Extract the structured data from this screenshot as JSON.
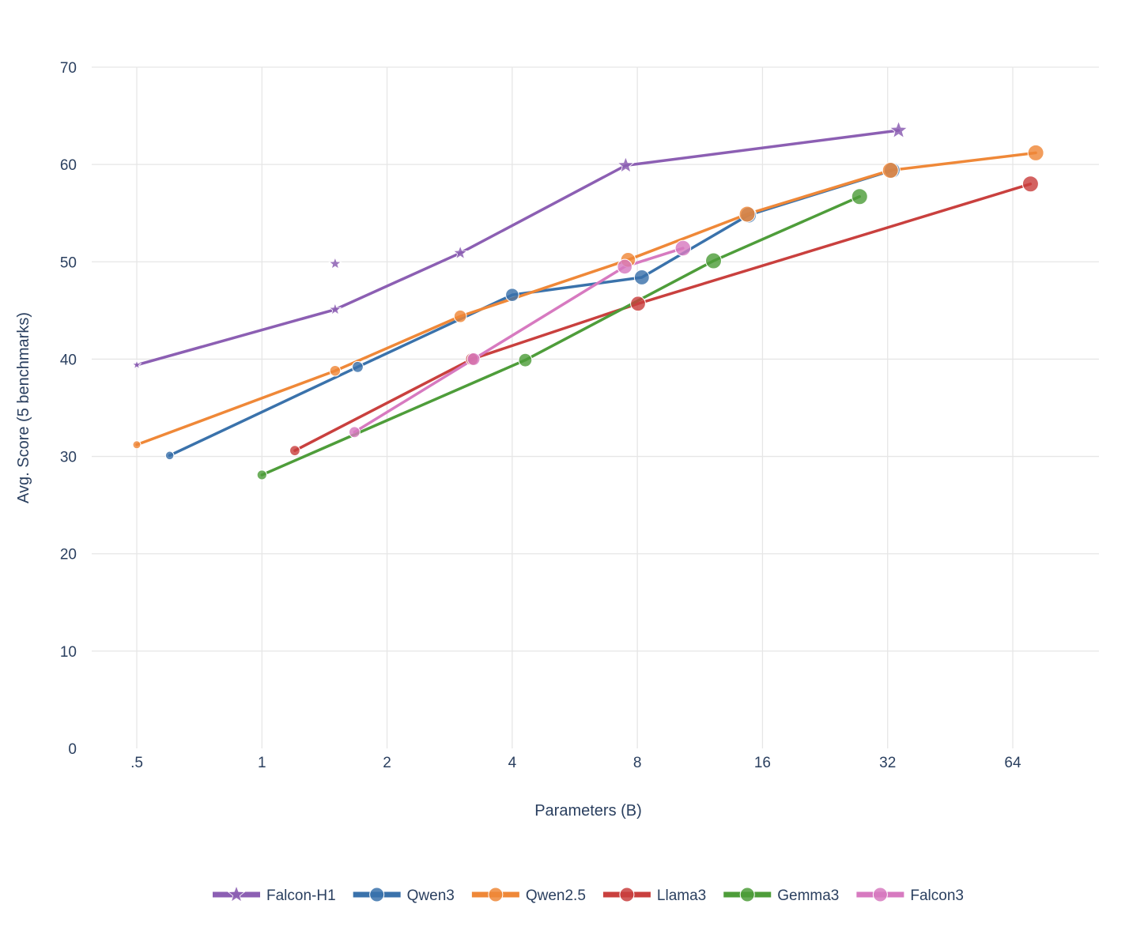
{
  "chart_data": {
    "type": "line",
    "title": "",
    "xlabel": "Parameters (B)",
    "ylabel": "Avg. Score (5 benchmarks)",
    "x_scale": "log2",
    "xlim": [
      0.4,
      96
    ],
    "ylim": [
      0,
      70
    ],
    "x_ticks": [
      0.5,
      1,
      2,
      4,
      8,
      16,
      32,
      64
    ],
    "x_tick_labels": [
      ".5",
      "1",
      "2",
      "4",
      "8",
      "16",
      "32",
      "64"
    ],
    "y_ticks": [
      0,
      10,
      20,
      30,
      40,
      50,
      60,
      70
    ],
    "y_tick_labels": [
      "0",
      "10",
      "20",
      "30",
      "40",
      "50",
      "60",
      "70"
    ],
    "grid": true,
    "legend_position": "bottom-center",
    "series": [
      {
        "name": "Falcon-H1",
        "color": "#8c5fb3",
        "marker": "star",
        "x": [
          0.5,
          1.5,
          3,
          7.5,
          34
        ],
        "y": [
          39.4,
          45.1,
          50.9,
          59.9,
          63.5
        ],
        "extra_points": [
          {
            "x": 1.5,
            "y": 49.8
          }
        ]
      },
      {
        "name": "Qwen3",
        "color": "#3a72ab",
        "marker": "circle",
        "x": [
          0.6,
          1.7,
          4,
          8.2,
          14.8,
          32.8
        ],
        "y": [
          30.1,
          39.2,
          46.6,
          48.4,
          54.8,
          59.4
        ]
      },
      {
        "name": "Qwen2.5",
        "color": "#ef8838",
        "marker": "circle",
        "x": [
          0.5,
          1.5,
          3,
          7.6,
          14.7,
          32.5,
          72.7
        ],
        "y": [
          31.2,
          38.8,
          44.4,
          50.2,
          54.9,
          59.4,
          61.2
        ]
      },
      {
        "name": "Llama3",
        "color": "#c9403e",
        "marker": "circle",
        "x": [
          1.2,
          3.2,
          8.03,
          70.6
        ],
        "y": [
          30.6,
          40.0,
          45.7,
          58.0
        ]
      },
      {
        "name": "Gemma3",
        "color": "#4e9d3a",
        "marker": "circle",
        "x": [
          1.0,
          4.3,
          12.2,
          27.4
        ],
        "y": [
          28.1,
          39.9,
          50.1,
          56.7
        ]
      },
      {
        "name": "Falcon3",
        "color": "#d77ac0",
        "marker": "circle",
        "x": [
          1.67,
          3.23,
          7.46,
          10.3
        ],
        "y": [
          32.5,
          40.0,
          49.5,
          51.4
        ]
      }
    ]
  }
}
